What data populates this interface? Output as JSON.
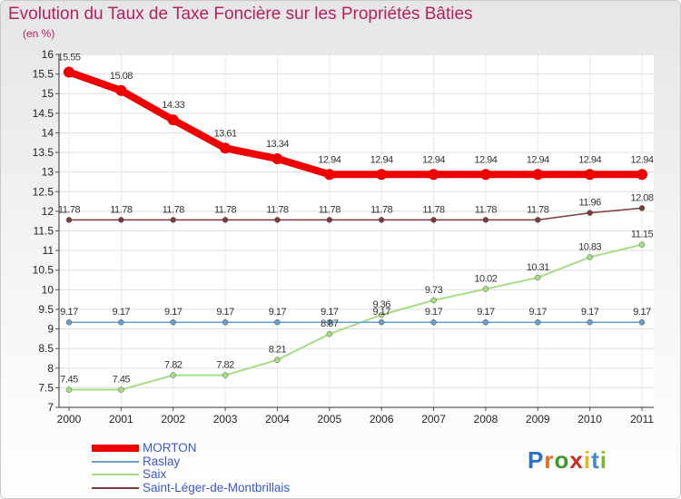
{
  "title": "Evolution du Taux de Taxe Foncière sur les Propriétés Bâties",
  "subtitle": "(en %)",
  "logo": {
    "letters": [
      "P",
      "r",
      "o",
      "x",
      "i",
      "t",
      "i"
    ],
    "colors": [
      "#2a72c8",
      "#e86a1a",
      "#3a9a2a",
      "#cc2a1a",
      "#e8b41a",
      "#3a8ad8",
      "#7ab830"
    ]
  },
  "chart_data": {
    "type": "line",
    "title": "Evolution du Taux de Taxe Foncière sur les Propriétés Bâties",
    "ylabel": "(en %)",
    "xlabel": "",
    "categories": [
      "2000",
      "2001",
      "2002",
      "2003",
      "2004",
      "2005",
      "2006",
      "2007",
      "2008",
      "2009",
      "2010",
      "2011"
    ],
    "ylim": [
      7,
      16
    ],
    "yticks": [
      "7",
      "7.5",
      "8",
      "8.5",
      "9",
      "9.5",
      "10",
      "10.5",
      "11",
      "11.5",
      "12",
      "12.5",
      "13",
      "13.5",
      "14",
      "14.5",
      "15",
      "15.5",
      "16"
    ],
    "series": [
      {
        "name": "MORTON",
        "color": "#ee0000",
        "values": [
          15.55,
          15.08,
          14.33,
          13.61,
          13.34,
          12.94,
          12.94,
          12.94,
          12.94,
          12.94,
          12.94,
          12.94
        ],
        "labels": [
          "15.55",
          "15.08",
          "14.33",
          "13.61",
          "13.34",
          "12.94",
          "12.94",
          "12.94",
          "12.94",
          "12.94",
          "12.94",
          "12.94"
        ]
      },
      {
        "name": "Raslay",
        "color": "#6a9fc9",
        "values": [
          9.17,
          9.17,
          9.17,
          9.17,
          9.17,
          9.17,
          9.17,
          9.17,
          9.17,
          9.17,
          9.17,
          9.17
        ],
        "labels": [
          "9.17",
          "9.17",
          "9.17",
          "9.17",
          "9.17",
          "9.17",
          "9.17",
          "9.17",
          "9.17",
          "9.17",
          "9.17",
          "9.17"
        ]
      },
      {
        "name": "Saix",
        "color": "#a6dc84",
        "values": [
          7.45,
          7.45,
          7.82,
          7.82,
          8.21,
          8.87,
          9.36,
          9.73,
          10.02,
          10.31,
          10.83,
          11.15
        ],
        "labels": [
          "7.45",
          "7.45",
          "7.82",
          "7.82",
          "8.21",
          "8.87",
          "9.36",
          "9.73",
          "10.02",
          "10.31",
          "10.83",
          "11.15"
        ]
      },
      {
        "name": "Saint-Léger-de-Montbrillais",
        "color": "#7a3a3a",
        "values": [
          11.78,
          11.78,
          11.78,
          11.78,
          11.78,
          11.78,
          11.78,
          11.78,
          11.78,
          11.78,
          11.96,
          12.08
        ],
        "labels": [
          "11.78",
          "11.78",
          "11.78",
          "11.78",
          "11.78",
          "11.78",
          "11.78",
          "11.78",
          "11.78",
          "11.78",
          "11.96",
          "12.08"
        ]
      }
    ]
  }
}
